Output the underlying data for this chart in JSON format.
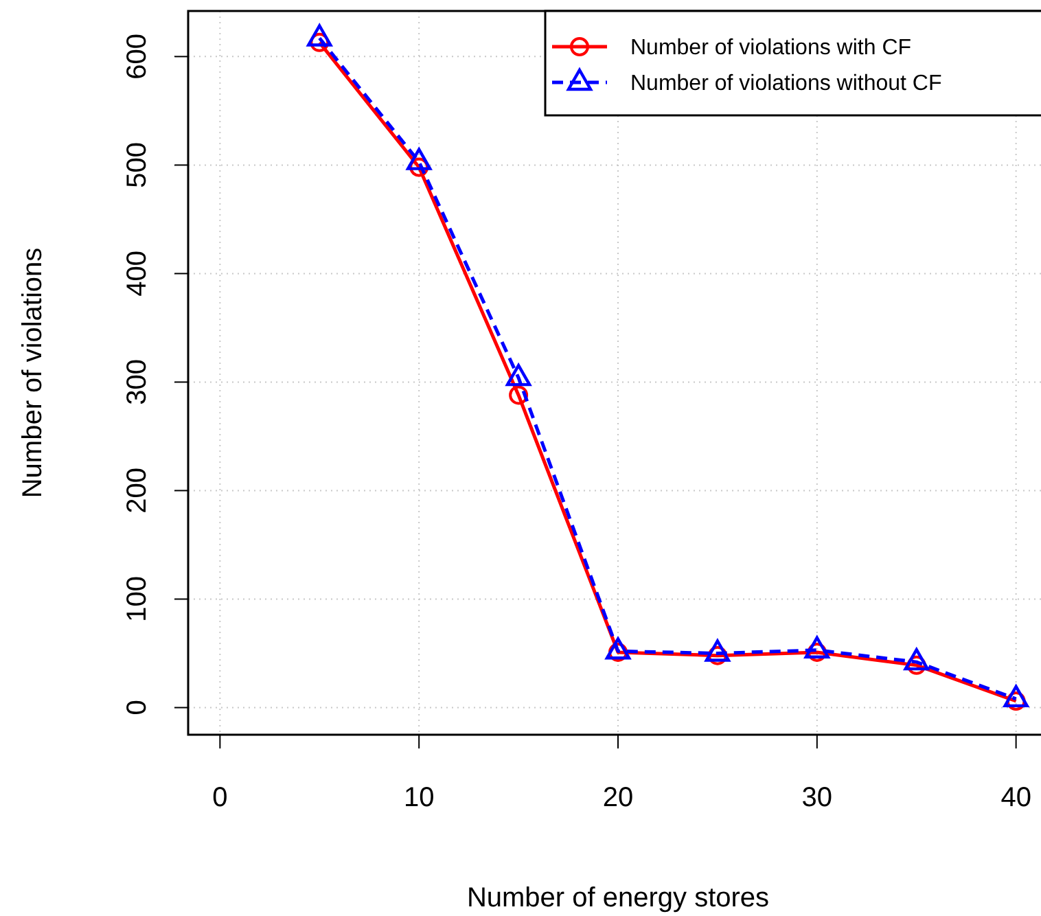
{
  "chart_data": {
    "type": "line",
    "xlabel": "Number of energy stores",
    "ylabel": "Number of violations",
    "x": [
      5,
      10,
      15,
      20,
      25,
      30,
      35,
      40
    ],
    "series": [
      {
        "name": "Number of violations with CF",
        "color": "#ff0000",
        "values": [
          613,
          498,
          288,
          51,
          48,
          51,
          39,
          6
        ],
        "marker": "circle",
        "line_style": "solid"
      },
      {
        "name": "Number of violations without CF",
        "color": "#0000ff",
        "values": [
          617,
          503,
          304,
          52,
          50,
          53,
          42,
          8
        ],
        "marker": "triangle",
        "line_style": "dashed"
      }
    ],
    "xlim": [
      -1.6,
      41.6
    ],
    "ylim": [
      -25,
      642
    ],
    "xticks": [
      0,
      10,
      20,
      30,
      40
    ],
    "yticks": [
      0,
      100,
      200,
      300,
      400,
      500,
      600
    ],
    "grid": true,
    "legend": "top right"
  }
}
